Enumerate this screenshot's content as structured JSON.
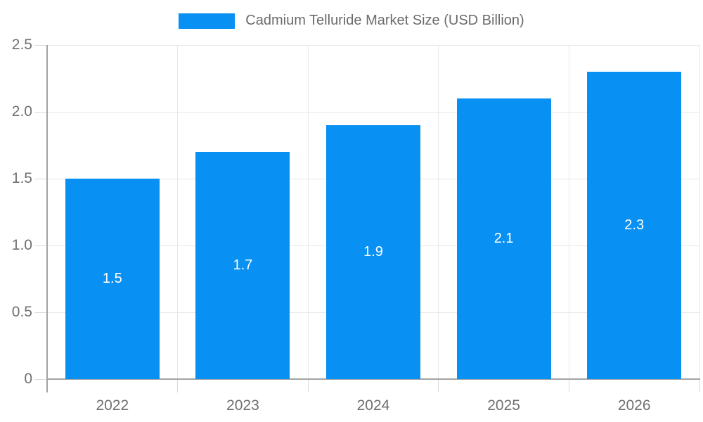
{
  "colors": {
    "bar": "#0990F3",
    "grid": "#e8e8e8",
    "tick": "#d9d9d9",
    "axis": "#a3a3a3",
    "axis_text": "#707070",
    "title_text": "#6b6b6b",
    "value_label": "#ffffff",
    "background": "#ffffff"
  },
  "legend": {
    "label": "Cadmium Telluride Market Size (USD Billion)"
  },
  "chart_data": {
    "type": "bar",
    "title": "Cadmium Telluride Market Size (USD Billion)",
    "categories": [
      "2022",
      "2023",
      "2024",
      "2025",
      "2026"
    ],
    "values": [
      1.5,
      1.7,
      1.9,
      2.1,
      2.3
    ],
    "value_labels": [
      "1.5",
      "1.7",
      "1.9",
      "2.1",
      "2.3"
    ],
    "series": [
      {
        "name": "Cadmium Telluride Market Size (USD Billion)",
        "values": [
          1.5,
          1.7,
          1.9,
          2.1,
          2.3
        ]
      }
    ],
    "xlabel": "",
    "ylabel": "",
    "ylim": [
      0,
      2.5
    ],
    "yticks": [
      0,
      0.5,
      1.0,
      1.5,
      2.0,
      2.5
    ],
    "ytick_labels": [
      "0",
      "0.5",
      "1.0",
      "1.5",
      "2.0",
      "2.5"
    ],
    "grid": true,
    "legend_position": "top"
  }
}
